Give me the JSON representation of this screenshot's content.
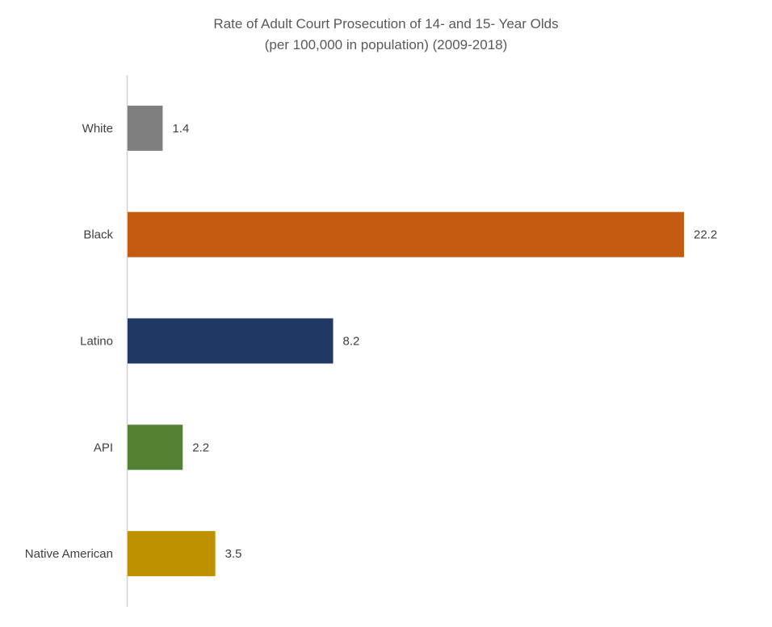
{
  "chart_data": {
    "type": "bar",
    "orientation": "horizontal",
    "title": [
      "Rate of Adult Court Prosecution of 14- and 15- Year Olds",
      "(per 100,000 in population) (2009-2018)"
    ],
    "categories": [
      "White",
      "Black",
      "Latino",
      "API",
      "Native American"
    ],
    "values": [
      1.4,
      22.2,
      8.2,
      2.2,
      3.5
    ],
    "data_labels": [
      "1.4",
      "22.2",
      "8.2",
      "2.2",
      "3.5"
    ],
    "colors": [
      "#7f7f7f",
      "#c55a11",
      "#1f3864",
      "#548235",
      "#bf9000"
    ],
    "xlim": [
      0,
      22.2
    ],
    "grid": false,
    "legend": "none",
    "xlabel": "",
    "ylabel": ""
  }
}
